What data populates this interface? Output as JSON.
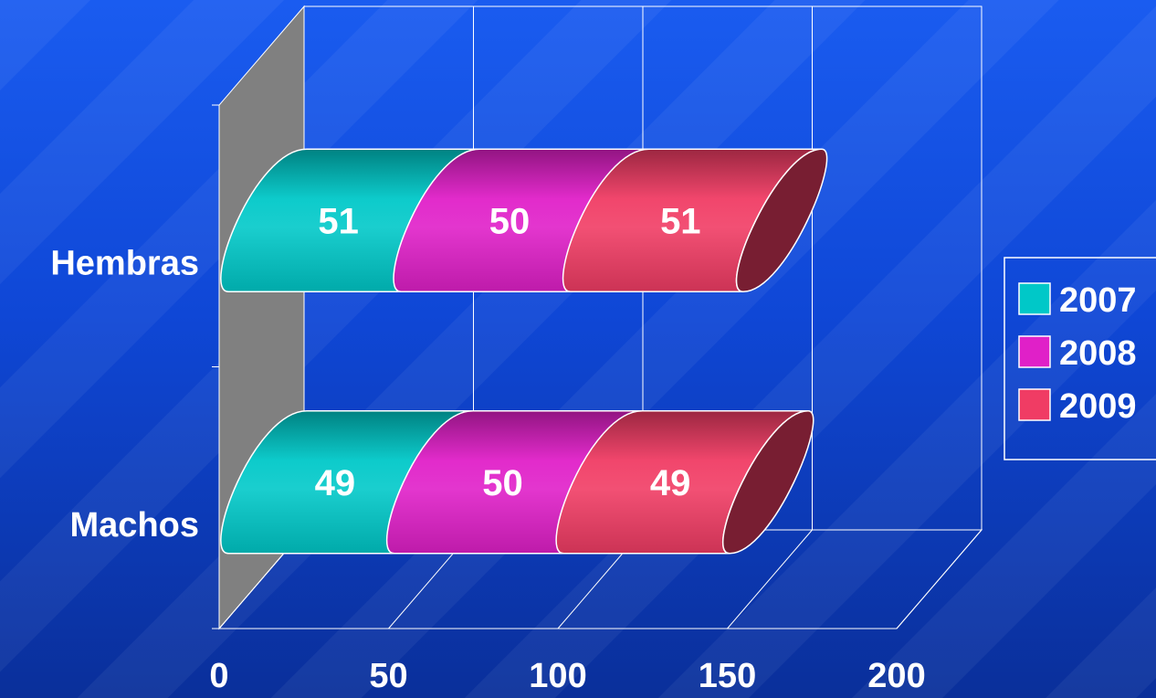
{
  "chart_data": {
    "type": "bar",
    "orientation": "horizontal",
    "stacked": true,
    "three_d": true,
    "categories": [
      "Hembras",
      "Machos"
    ],
    "series": [
      {
        "name": "2007",
        "values": [
          51,
          49
        ],
        "color": "#00c8c8"
      },
      {
        "name": "2008",
        "values": [
          50,
          50
        ],
        "color": "#e020c8"
      },
      {
        "name": "2009",
        "values": [
          51,
          49
        ],
        "color": "#f03c64"
      }
    ],
    "xlim": [
      0,
      200
    ],
    "xticks": [
      "0",
      "50",
      "100",
      "150",
      "200"
    ],
    "grid": true,
    "legend": "right",
    "data_labels": true
  },
  "colors": {
    "background": "#1150e6",
    "wall": "#808080",
    "grid_line": "#ffffff",
    "text": "#ffffff"
  }
}
